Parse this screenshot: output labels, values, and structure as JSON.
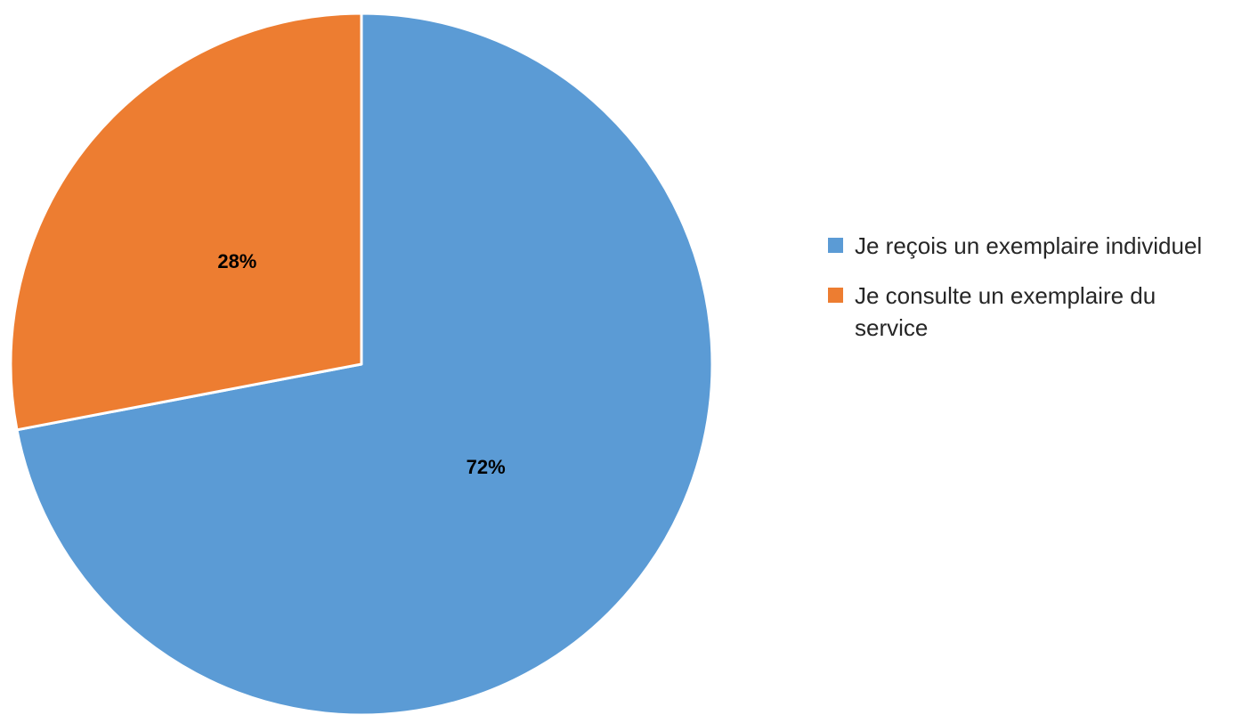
{
  "chart_data": {
    "type": "pie",
    "title": "",
    "slices": [
      {
        "label": "Je reçois un exemplaire individuel",
        "value": 72,
        "display": "72%",
        "color": "#5B9BD5"
      },
      {
        "label": "Je consulte un exemplaire du service",
        "value": 28,
        "display": "28%",
        "color": "#ED7D31"
      }
    ],
    "start_angle_deg": 0,
    "direction": "clockwise",
    "legend_position": "right",
    "data_labels": true
  },
  "legend": {
    "items": [
      {
        "label": "Je reçois un exemplaire individuel",
        "color": "#5B9BD5"
      },
      {
        "label": "Je consulte un exemplaire du service",
        "color": "#ED7D31"
      }
    ]
  }
}
